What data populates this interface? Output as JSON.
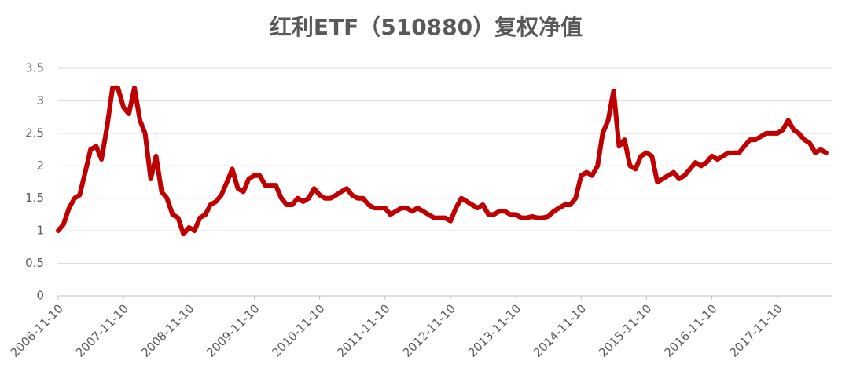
{
  "chart_data": {
    "type": "line",
    "title": "红利ETF（510880）复权净值",
    "x": [
      "2006-11-10",
      "2006-12-10",
      "2007-01-10",
      "2007-02-10",
      "2007-03-10",
      "2007-04-10",
      "2007-05-10",
      "2007-06-10",
      "2007-07-10",
      "2007-08-10",
      "2007-09-10",
      "2007-10-10",
      "2007-11-10",
      "2007-12-10",
      "2008-01-10",
      "2008-02-10",
      "2008-03-10",
      "2008-04-10",
      "2008-05-10",
      "2008-06-10",
      "2008-07-10",
      "2008-08-10",
      "2008-09-10",
      "2008-10-10",
      "2008-11-10",
      "2008-12-10",
      "2009-01-10",
      "2009-02-10",
      "2009-03-10",
      "2009-04-10",
      "2009-05-10",
      "2009-06-10",
      "2009-07-10",
      "2009-08-10",
      "2009-09-10",
      "2009-10-10",
      "2009-11-10",
      "2009-12-10",
      "2010-01-10",
      "2010-02-10",
      "2010-03-10",
      "2010-04-10",
      "2010-05-10",
      "2010-06-10",
      "2010-07-10",
      "2010-08-10",
      "2010-09-10",
      "2010-10-10",
      "2010-11-10",
      "2010-12-10",
      "2011-01-10",
      "2011-02-10",
      "2011-03-10",
      "2011-04-10",
      "2011-05-10",
      "2011-06-10",
      "2011-07-10",
      "2011-08-10",
      "2011-09-10",
      "2011-10-10",
      "2011-11-10",
      "2011-12-10",
      "2012-01-10",
      "2012-02-10",
      "2012-03-10",
      "2012-04-10",
      "2012-05-10",
      "2012-06-10",
      "2012-07-10",
      "2012-08-10",
      "2012-09-10",
      "2012-10-10",
      "2012-11-10",
      "2012-12-10",
      "2013-01-10",
      "2013-02-10",
      "2013-03-10",
      "2013-04-10",
      "2013-05-10",
      "2013-06-10",
      "2013-07-10",
      "2013-08-10",
      "2013-09-10",
      "2013-10-10",
      "2013-11-10",
      "2013-12-10",
      "2014-01-10",
      "2014-02-10",
      "2014-03-10",
      "2014-04-10",
      "2014-05-10",
      "2014-06-10",
      "2014-07-10",
      "2014-08-10",
      "2014-09-10",
      "2014-10-10",
      "2014-11-10",
      "2014-12-10",
      "2015-01-10",
      "2015-02-10",
      "2015-03-10",
      "2015-04-10",
      "2015-05-10",
      "2015-06-10",
      "2015-07-10",
      "2015-08-10",
      "2015-09-10",
      "2015-10-10",
      "2015-11-10",
      "2015-12-10",
      "2016-01-10",
      "2016-02-10",
      "2016-03-10",
      "2016-04-10",
      "2016-05-10",
      "2016-06-10",
      "2016-07-10",
      "2016-08-10",
      "2016-09-10",
      "2016-10-10",
      "2016-11-10",
      "2016-12-10",
      "2017-01-10",
      "2017-02-10",
      "2017-03-10",
      "2017-04-10",
      "2017-05-10",
      "2017-06-10",
      "2017-07-10",
      "2017-08-10",
      "2017-09-10",
      "2017-10-10",
      "2017-11-10",
      "2017-12-10",
      "2018-01-10",
      "2018-02-10",
      "2018-03-10",
      "2018-04-10",
      "2018-05-10",
      "2018-06-10",
      "2018-07-10",
      "2018-08-10"
    ],
    "series": [
      {
        "color": "#c00000",
        "values": [
          1.0,
          1.1,
          1.35,
          1.5,
          1.55,
          1.9,
          2.25,
          2.3,
          2.1,
          2.6,
          3.2,
          3.2,
          2.9,
          2.8,
          3.2,
          2.7,
          2.5,
          1.8,
          2.15,
          1.6,
          1.5,
          1.25,
          1.2,
          0.95,
          1.05,
          1.0,
          1.2,
          1.25,
          1.4,
          1.45,
          1.55,
          1.75,
          1.95,
          1.65,
          1.6,
          1.8,
          1.85,
          1.85,
          1.7,
          1.7,
          1.7,
          1.5,
          1.4,
          1.4,
          1.5,
          1.45,
          1.5,
          1.65,
          1.55,
          1.5,
          1.5,
          1.55,
          1.6,
          1.65,
          1.55,
          1.5,
          1.5,
          1.4,
          1.35,
          1.35,
          1.35,
          1.25,
          1.3,
          1.35,
          1.35,
          1.3,
          1.35,
          1.3,
          1.25,
          1.2,
          1.2,
          1.2,
          1.15,
          1.35,
          1.5,
          1.45,
          1.4,
          1.35,
          1.4,
          1.25,
          1.25,
          1.3,
          1.3,
          1.25,
          1.25,
          1.2,
          1.2,
          1.22,
          1.2,
          1.2,
          1.22,
          1.3,
          1.35,
          1.4,
          1.4,
          1.5,
          1.85,
          1.9,
          1.85,
          2.0,
          2.5,
          2.7,
          3.15,
          2.3,
          2.4,
          2.0,
          1.95,
          2.15,
          2.2,
          2.15,
          1.75,
          1.8,
          1.85,
          1.9,
          1.8,
          1.85,
          1.95,
          2.05,
          2.0,
          2.05,
          2.15,
          2.1,
          2.15,
          2.2,
          2.2,
          2.2,
          2.3,
          2.4,
          2.4,
          2.45,
          2.5,
          2.5,
          2.5,
          2.55,
          2.7,
          2.55,
          2.5,
          2.4,
          2.35,
          2.2,
          2.25,
          2.2
        ]
      }
    ],
    "xlim": [
      "2006-11-10",
      "2018-09-10"
    ],
    "xticks": [
      "2006-11-10",
      "2007-11-10",
      "2008-11-10",
      "2009-11-10",
      "2010-11-10",
      "2011-11-10",
      "2012-11-10",
      "2013-11-10",
      "2014-11-10",
      "2015-11-10",
      "2016-11-10",
      "2017-11-10"
    ],
    "ylim": [
      0,
      3.5
    ],
    "yticks": [
      0,
      0.5,
      1,
      1.5,
      2,
      2.5,
      3,
      3.5
    ],
    "grid": true
  }
}
